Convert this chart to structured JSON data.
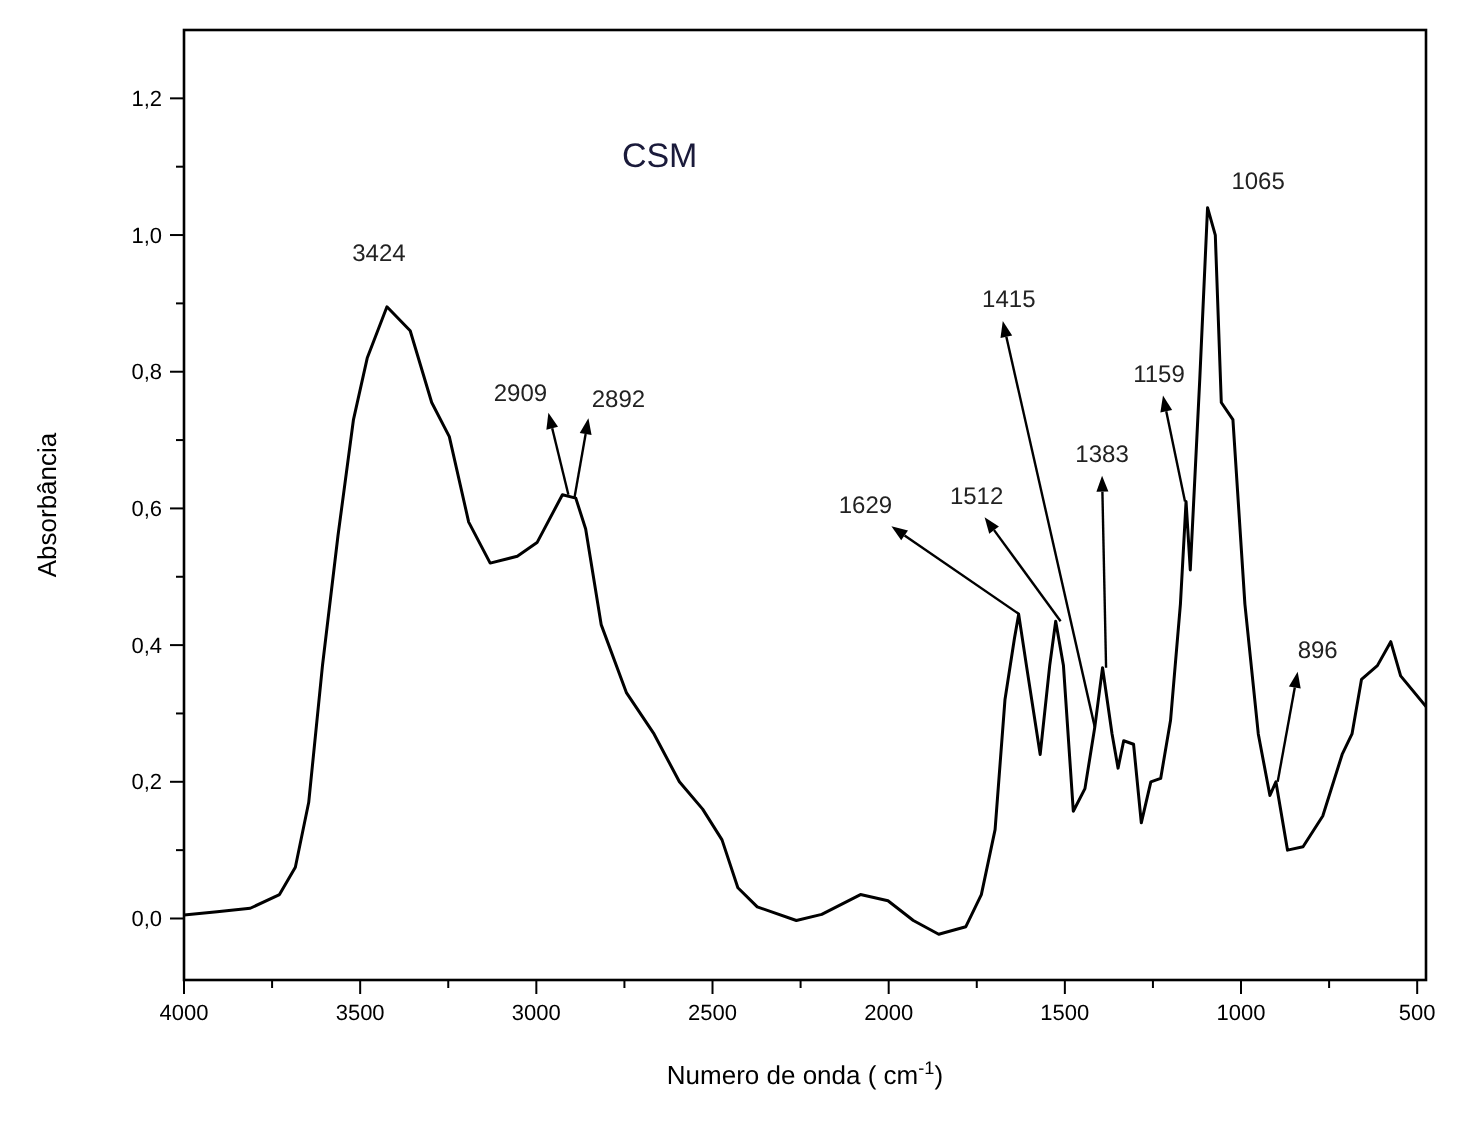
{
  "chart_data": {
    "type": "line",
    "title": "CSM",
    "xlabel": "Numero de onda ( cm$^{-1}$)",
    "ylabel": "Absorbância",
    "xlim": [
      4000,
      475
    ],
    "ylim": [
      -0.09,
      1.3
    ],
    "xticks": [
      4000,
      {
        "value": 3750,
        "label": null
      },
      3500,
      {
        "value": 3250,
        "label": null
      },
      3000,
      {
        "value": 2750,
        "label": null
      },
      2500,
      {
        "value": 2250,
        "label": null
      },
      2000,
      {
        "value": 1750,
        "label": null
      },
      1500,
      {
        "value": 1250,
        "label": null
      },
      1000,
      {
        "value": 750,
        "label": null
      },
      500
    ],
    "yticks": [
      {
        "value": 0,
        "label": "0,0"
      },
      {
        "value": 0.1,
        "label": null
      },
      {
        "value": 0.2,
        "label": "0,2"
      },
      {
        "value": 0.3,
        "label": null
      },
      {
        "value": 0.4,
        "label": "0,4"
      },
      {
        "value": 0.5,
        "label": null
      },
      {
        "value": 0.6,
        "label": "0,6"
      },
      {
        "value": 0.7,
        "label": null
      },
      {
        "value": 0.8,
        "label": "0,8"
      },
      {
        "value": 0.9,
        "label": null
      },
      {
        "value": 1.0,
        "label": "1,0"
      },
      {
        "value": 1.1,
        "label": null
      },
      {
        "value": 1.2,
        "label": "1,2"
      }
    ],
    "grid": false,
    "legend": false,
    "marker": "none",
    "line_style": "solid",
    "series": [
      {
        "color": "#000000",
        "x": [
          4000,
          3906,
          3812,
          3729,
          3684,
          3646,
          3607,
          3563,
          3519,
          3480,
          3424,
          3358,
          3297,
          3247,
          3192,
          3131,
          3054,
          2998,
          2926,
          2888,
          2860,
          2816,
          2744,
          2666,
          2594,
          2528,
          2473,
          2428,
          2373,
          2262,
          2190,
          2080,
          2002,
          1930,
          1858,
          1781,
          1737,
          1698,
          1670,
          1643,
          1631,
          1609,
          1570,
          1543,
          1526,
          1504,
          1476,
          1443,
          1415,
          1393,
          1366,
          1349,
          1333,
          1305,
          1283,
          1256,
          1228,
          1200,
          1172,
          1156,
          1144,
          1117,
          1095,
          1073,
          1056,
          1023,
          989,
          951,
          918,
          901,
          868,
          824,
          768,
          713,
          685,
          658,
          613,
          575,
          547,
          475
        ],
        "values": [
          0.005,
          0.01,
          0.015,
          0.035,
          0.075,
          0.17,
          0.37,
          0.56,
          0.73,
          0.82,
          0.895,
          0.86,
          0.755,
          0.705,
          0.58,
          0.52,
          0.53,
          0.55,
          0.62,
          0.615,
          0.57,
          0.43,
          0.33,
          0.27,
          0.2,
          0.16,
          0.115,
          0.045,
          0.017,
          -0.003,
          0.006,
          0.035,
          0.026,
          -0.003,
          -0.023,
          -0.012,
          0.035,
          0.13,
          0.32,
          0.41,
          0.445,
          0.37,
          0.24,
          0.37,
          0.435,
          0.37,
          0.157,
          0.19,
          0.28,
          0.367,
          0.27,
          0.22,
          0.26,
          0.255,
          0.14,
          0.2,
          0.205,
          0.29,
          0.46,
          0.61,
          0.51,
          0.79,
          1.04,
          1.0,
          0.755,
          0.73,
          0.46,
          0.27,
          0.18,
          0.2,
          0.1,
          0.105,
          0.15,
          0.24,
          0.27,
          0.35,
          0.37,
          0.405,
          0.355,
          0.31
        ]
      }
    ],
    "annotations": [
      {
        "text": "3424",
        "x": 3424,
        "y": 0.895
      },
      {
        "text": "2909",
        "x": 2909,
        "y": 0.62
      },
      {
        "text": "2892",
        "x": 2892,
        "y": 0.615
      },
      {
        "text": "1629",
        "x": 1629,
        "y": 0.445
      },
      {
        "text": "1512",
        "x": 1512,
        "y": 0.435
      },
      {
        "text": "1415",
        "x": 1415,
        "y": 0.28
      },
      {
        "text": "1383",
        "x": 1383,
        "y": 0.367
      },
      {
        "text": "1159",
        "x": 1159,
        "y": 0.61
      },
      {
        "text": "1065",
        "x": 1065,
        "y": 1.0
      },
      {
        "text": "896",
        "x": 896,
        "y": 0.2
      }
    ]
  }
}
